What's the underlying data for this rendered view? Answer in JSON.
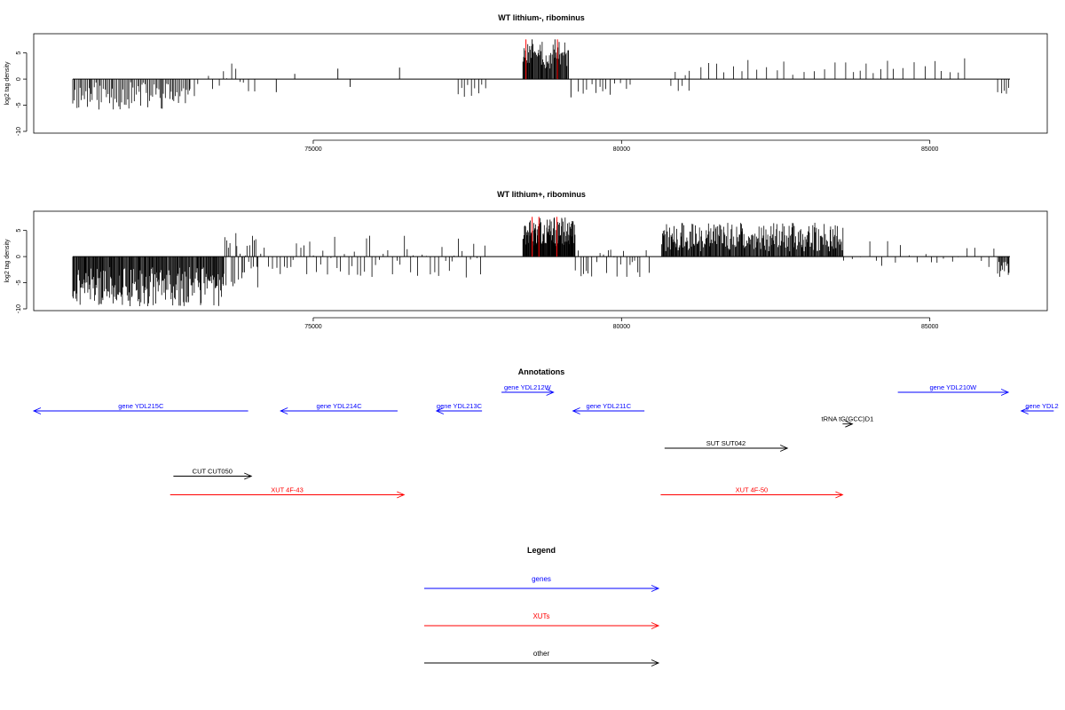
{
  "chart_data": [
    {
      "type": "bar",
      "title": "WT lithium-, ribominus",
      "ylabel": "log2 tag density",
      "xlabel": "",
      "xlim": [
        71000,
        86400
      ],
      "ylim": [
        -10,
        8
      ],
      "xticks": [
        75000,
        80000,
        85000
      ],
      "yticks": [
        -10,
        -5,
        0,
        5
      ],
      "xtick_labels": [
        "75000",
        "80000",
        "85000"
      ],
      "ytick_labels": [
        "-10",
        "-5",
        "0",
        "5"
      ],
      "grid": false,
      "highlight_color": "#ff0000",
      "bar_color": "#000000",
      "highlight_x": [
        78450,
        78960
      ],
      "segments": [
        {
          "from": 71100,
          "to": 73000,
          "step": 25,
          "min": -6,
          "max": -0.5,
          "sign": -1,
          "seed": 11
        },
        {
          "from": 73000,
          "to": 74100,
          "step": 80,
          "min": -3.5,
          "max": 3.2,
          "sign": 0,
          "seed": 12
        },
        {
          "from": 77350,
          "to": 77800,
          "step": 60,
          "min": -3.5,
          "max": -1,
          "sign": -1,
          "seed": 13
        },
        {
          "from": 78400,
          "to": 79150,
          "step": 12,
          "min": 2,
          "max": 7.5,
          "sign": 1,
          "seed": 14
        },
        {
          "from": 79300,
          "to": 80200,
          "step": 70,
          "min": -3,
          "max": -0.5,
          "sign": -1,
          "seed": 15
        },
        {
          "from": 80800,
          "to": 81100,
          "step": 60,
          "min": -2.5,
          "max": 2.5,
          "sign": 0,
          "seed": 16
        },
        {
          "from": 81100,
          "to": 85700,
          "step": 150,
          "min": 0.8,
          "max": 4,
          "sign": 1,
          "seed": 17
        },
        {
          "from": 86100,
          "to": 86300,
          "step": 50,
          "min": -3,
          "max": -1,
          "sign": -1,
          "seed": 18
        }
      ],
      "bars": [
        {
          "x": 74400,
          "y": -2.5
        },
        {
          "x": 74700,
          "y": 1
        },
        {
          "x": 75400,
          "y": 2
        },
        {
          "x": 75600,
          "y": -1.5
        },
        {
          "x": 76400,
          "y": 2.2
        },
        {
          "x": 78550,
          "y": 7.6
        },
        {
          "x": 78920,
          "y": 7.6
        },
        {
          "x": 79180,
          "y": -3.5
        }
      ]
    },
    {
      "type": "bar",
      "title": "WT lithium+, ribominus",
      "ylabel": "log2 tag density",
      "xlabel": "",
      "xlim": [
        71000,
        86400
      ],
      "ylim": [
        -10,
        8
      ],
      "xticks": [
        75000,
        80000,
        85000
      ],
      "yticks": [
        -10,
        -5,
        0,
        5
      ],
      "xtick_labels": [
        "75000",
        "80000",
        "85000"
      ],
      "ytick_labels": [
        "-10",
        "-5",
        "0",
        "5"
      ],
      "grid": false,
      "highlight_color": "#ff0000",
      "bar_color": "#000000",
      "highlight_x": [
        78550,
        78660,
        78950
      ],
      "segments": [
        {
          "from": 71100,
          "to": 73550,
          "step": 12,
          "min": -9.5,
          "max": -2,
          "sign": -1,
          "seed": 21
        },
        {
          "from": 73550,
          "to": 74100,
          "step": 20,
          "min": -6,
          "max": 5,
          "sign": 0,
          "seed": 22
        },
        {
          "from": 74100,
          "to": 77800,
          "step": 55,
          "min": -4,
          "max": 4,
          "sign": 0,
          "seed": 23
        },
        {
          "from": 78400,
          "to": 79250,
          "step": 8,
          "min": 2,
          "max": 7.5,
          "sign": 1,
          "seed": 24
        },
        {
          "from": 79250,
          "to": 80500,
          "step": 45,
          "min": -4,
          "max": 1.5,
          "sign": 0,
          "seed": 25
        },
        {
          "from": 80650,
          "to": 83600,
          "step": 12,
          "min": 1,
          "max": 6.5,
          "sign": 1,
          "seed": 26
        },
        {
          "from": 83600,
          "to": 86100,
          "step": 120,
          "min": -2,
          "max": 3,
          "sign": 0,
          "seed": 27
        },
        {
          "from": 86100,
          "to": 86300,
          "step": 15,
          "min": -4,
          "max": -1,
          "sign": -1,
          "seed": 28
        }
      ],
      "bars": []
    }
  ],
  "annotations": {
    "title": "Annotations",
    "features": [
      {
        "label": "gene YDL215C",
        "type": "gene",
        "start": 71000,
        "end": 74300,
        "strand": "-",
        "row": 0
      },
      {
        "label": "gene YDL214C",
        "type": "gene",
        "start": 74800,
        "end": 76600,
        "strand": "-",
        "row": 0
      },
      {
        "label": "gene YDL213C",
        "type": "gene",
        "start": 77200,
        "end": 77900,
        "strand": "-",
        "row": 0
      },
      {
        "label": "gene YDL212W",
        "type": "gene",
        "start": 78200,
        "end": 79000,
        "strand": "+",
        "row": -1
      },
      {
        "label": "gene YDL211C",
        "type": "gene",
        "start": 79300,
        "end": 80400,
        "strand": "-",
        "row": 0
      },
      {
        "label": "gene YDL210W",
        "type": "gene",
        "start": 84300,
        "end": 86000,
        "strand": "+",
        "row": -1
      },
      {
        "label": "gene YDL2",
        "type": "gene",
        "start": 86200,
        "end": 86700,
        "strand": "-",
        "row": 0
      },
      {
        "label": "tRNA tG(GCC)D1",
        "type": "other",
        "start": 83450,
        "end": 83600,
        "strand": "+",
        "row": 0.7
      },
      {
        "label": "SUT SUT042",
        "type": "other",
        "start": 80710,
        "end": 82600,
        "strand": "+",
        "row": 2
      },
      {
        "label": "CUT CUT050",
        "type": "other",
        "start": 73150,
        "end": 74350,
        "strand": "+",
        "row": 3.5
      },
      {
        "label": "XUT 4F-43",
        "type": "xut",
        "start": 73100,
        "end": 76700,
        "strand": "+",
        "row": 4.5
      },
      {
        "label": "XUT 4F-50",
        "type": "xut",
        "start": 80650,
        "end": 83450,
        "strand": "+",
        "row": 4.5
      }
    ]
  },
  "legend": {
    "title": "Legend",
    "items": [
      {
        "label": "genes",
        "type": "gene"
      },
      {
        "label": "XUTs",
        "type": "xut"
      },
      {
        "label": "other",
        "type": "other"
      }
    ]
  },
  "colors": {
    "gene": "#0000ff",
    "xut": "#ff0000",
    "other": "#000000"
  }
}
